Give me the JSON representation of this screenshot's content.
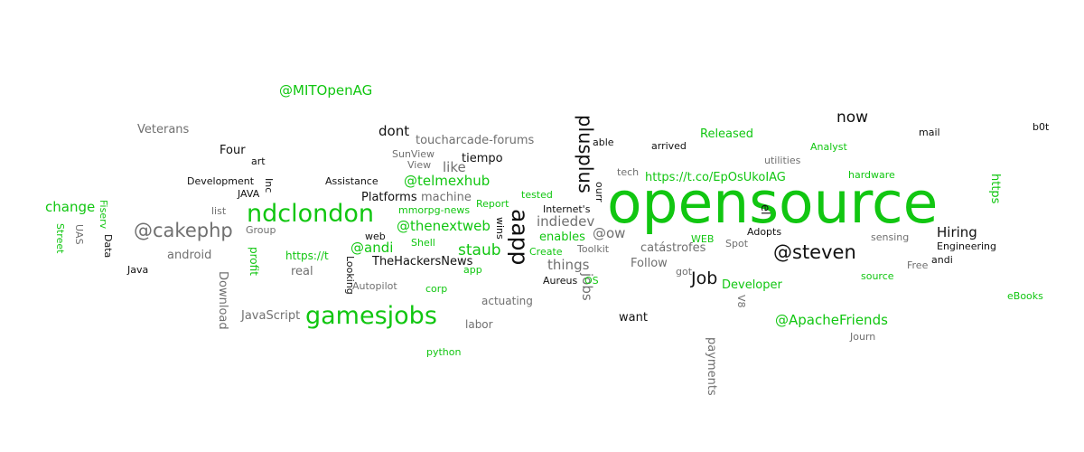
{
  "colors": {
    "green": "#11c611",
    "black": "#111111",
    "gray": "#707070"
  },
  "words": [
    "@MITOpenAG",
    "Veterans",
    "Four",
    "art",
    "Development",
    "Inc",
    "JAVA",
    "list",
    "change",
    "Fiserv",
    "Street",
    "UAS",
    "Data",
    "@cakephp",
    "Group",
    "android",
    "Java",
    "Download",
    "profit",
    "https://t",
    "real",
    "JavaScript",
    "gamesjobs",
    "ndclondon",
    "dont",
    "toucharcade-forums",
    "SunView",
    "View",
    "like",
    "tiempo",
    "Assistance",
    "@telmexhub",
    "Platforms",
    "machine",
    "Report",
    "tested",
    "mmorpg-news",
    "@thenextweb",
    "wins",
    "web",
    "Shell",
    "@andi",
    "staub",
    "TheHackersNews",
    "app",
    "Looking",
    "Autopilot",
    "corp",
    "actuating",
    "labor",
    "python",
    "plusplus",
    "able",
    "aapp",
    "Internet's",
    "enables",
    "Create",
    "indiedev",
    "Aureus",
    "things",
    "jobs",
    "OS",
    "ourr",
    "tech",
    "@ow",
    "Toolkit",
    "want",
    "arrived",
    "Released",
    "utilities",
    "https://t.co/EpOsUkoIAG",
    "opensource",
    "now",
    "Analyst",
    "hardware",
    "mail",
    "b0t",
    "https",
    "el",
    "WEB",
    "catástrofes",
    "Follow",
    "got",
    "Spot",
    "Adopts",
    "Job",
    "Developer",
    "V8",
    "@steven",
    "sensing",
    "Hiring",
    "Engineering",
    "Free",
    "andi",
    "source",
    "@ApacheFriends",
    "Journ",
    "payments",
    "eBooks"
  ]
}
